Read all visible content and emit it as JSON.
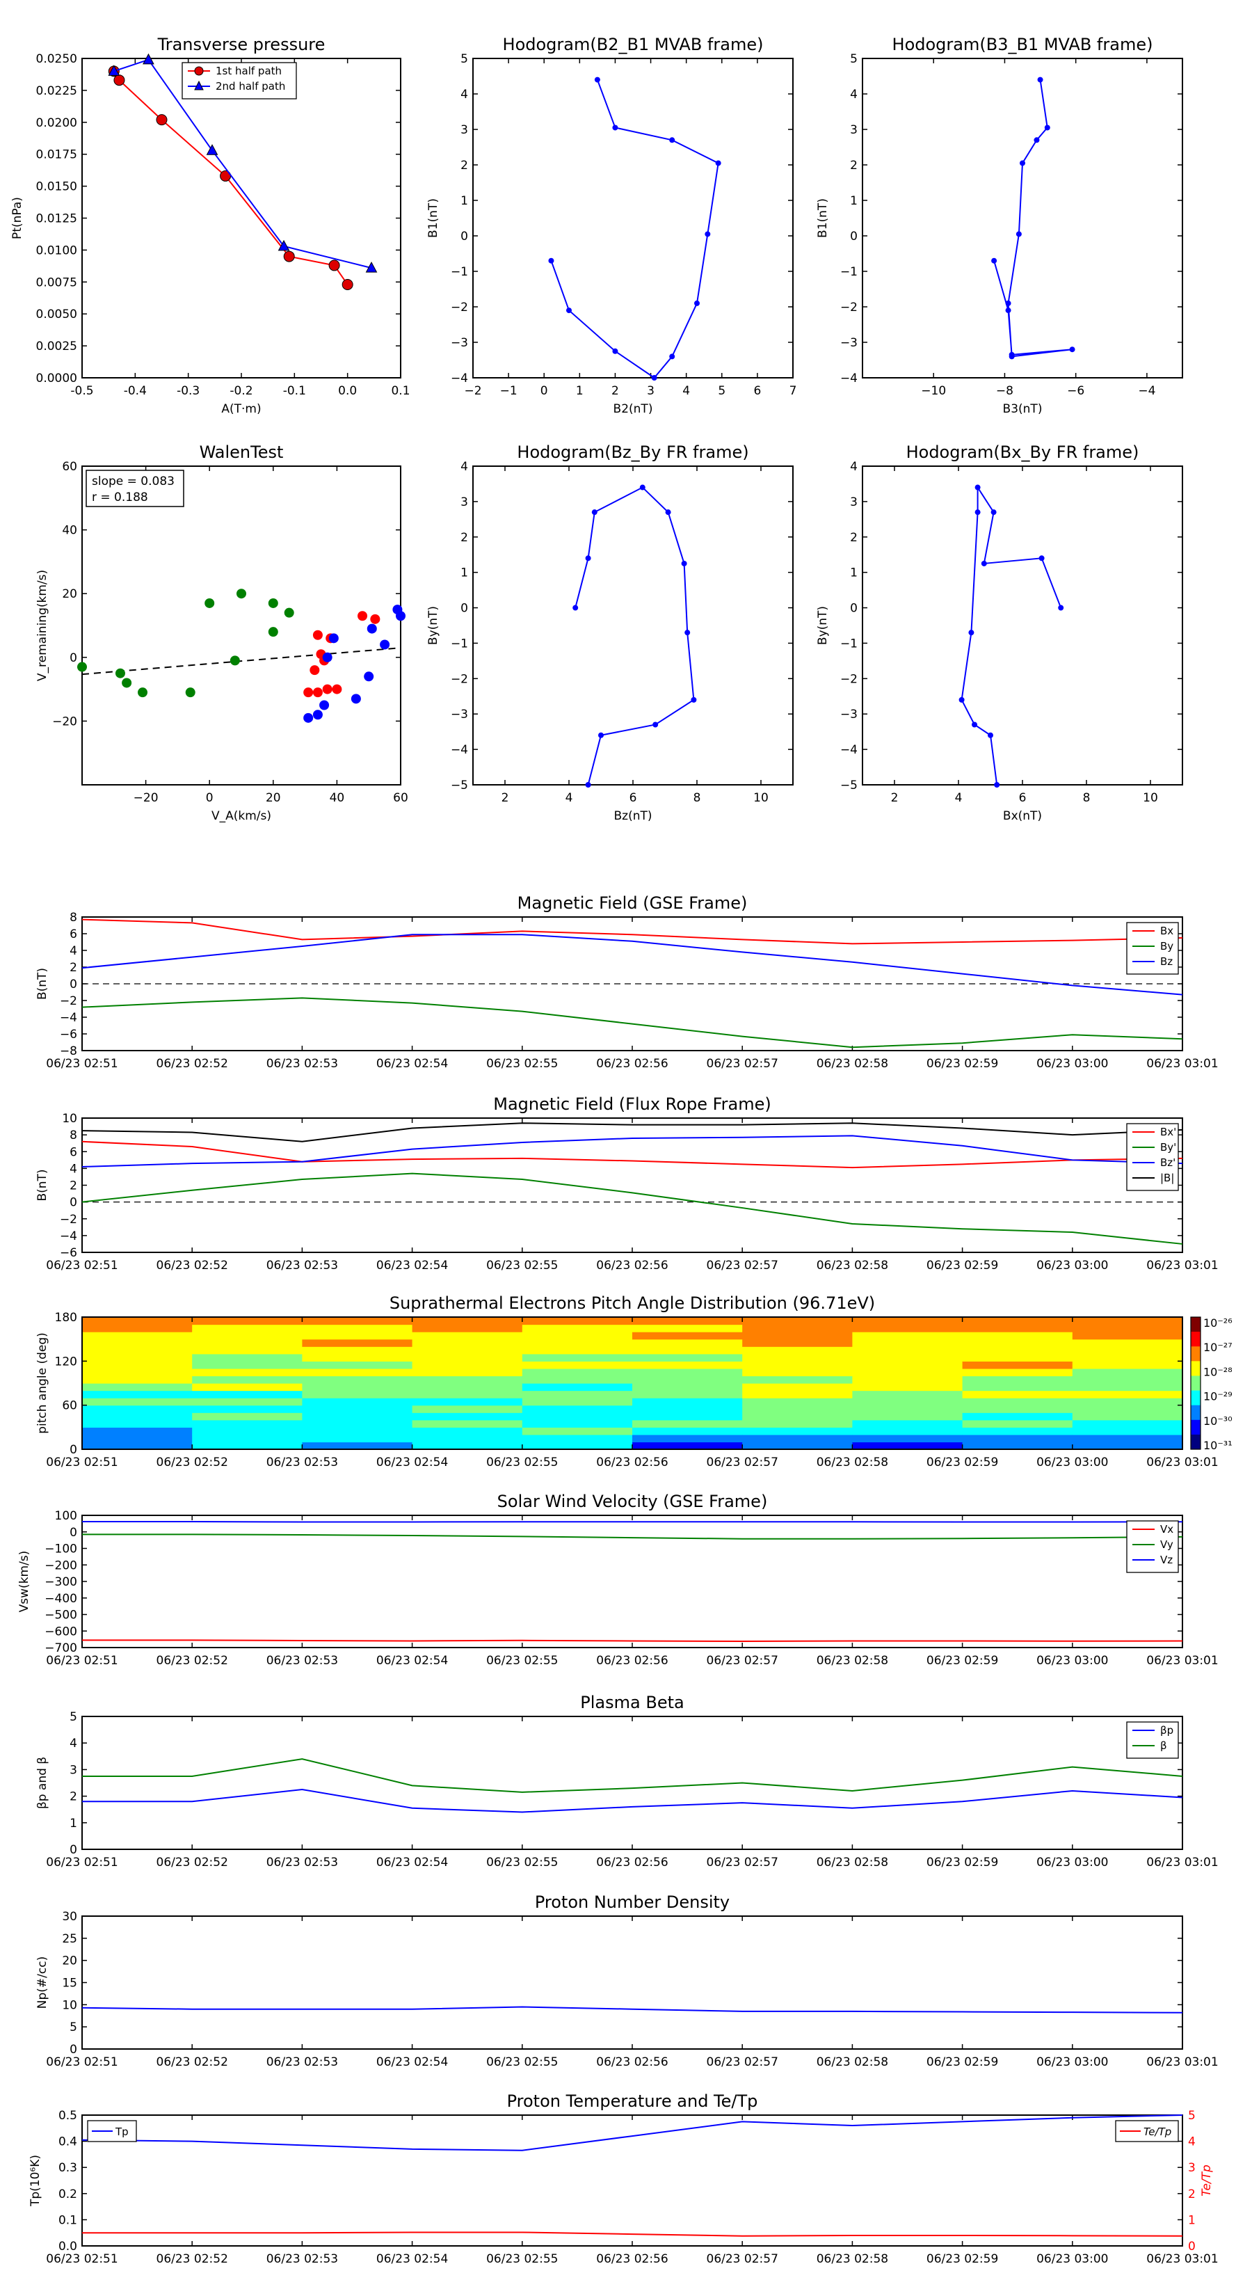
{
  "colors": {
    "red": "#ff0000",
    "green": "#008000",
    "blue": "#0000ff",
    "black": "#000000",
    "marker_red": "#dd0000"
  },
  "time_ticks": [
    "06/23 02:51",
    "06/23 02:52",
    "06/23 02:53",
    "06/23 02:54",
    "06/23 02:55",
    "06/23 02:56",
    "06/23 02:57",
    "06/23 02:58",
    "06/23 02:59",
    "06/23 03:00",
    "06/23 03:01"
  ],
  "chart_data": [
    {
      "id": "transverse",
      "type": "line",
      "title": "Transverse pressure",
      "xlabel": "A(T·m)",
      "ylabel": "Pt(nPa)",
      "xlim": [
        -0.5,
        0.1
      ],
      "ylim": [
        0,
        0.025
      ],
      "xticks": [
        "-0.5",
        "-0.4",
        "-0.3",
        "-0.2",
        "-0.1",
        "0.0",
        "0.1"
      ],
      "yticks": [
        "0.0000",
        "0.0025",
        "0.0050",
        "0.0075",
        "0.0100",
        "0.0125",
        "0.0150",
        "0.0175",
        "0.0200",
        "0.0225",
        "0.0250"
      ],
      "legend": [
        "1st half path",
        "2nd half path"
      ],
      "legend_position": "top-center",
      "series": [
        {
          "name": "1st half path",
          "color": "red",
          "marker": "circle",
          "x": [
            -0.44,
            -0.43,
            -0.35,
            -0.23,
            -0.11,
            -0.025,
            0.0
          ],
          "y": [
            0.024,
            0.0233,
            0.0202,
            0.0158,
            0.0095,
            0.0088,
            0.0073
          ]
        },
        {
          "name": "2nd half path",
          "color": "blue",
          "marker": "triangle",
          "x": [
            -0.44,
            -0.375,
            -0.255,
            -0.12,
            0.045
          ],
          "y": [
            0.024,
            0.0249,
            0.0178,
            0.0103,
            0.0086
          ]
        }
      ]
    },
    {
      "id": "hodo_b2b1",
      "type": "line",
      "title": "Hodogram(B2_B1 MVAB frame)",
      "xlabel": "B2(nT)",
      "ylabel": "B1(nT)",
      "xlim": [
        -2,
        7
      ],
      "ylim": [
        -4,
        5
      ],
      "xticks": [
        "−2",
        "−1",
        "0",
        "1",
        "2",
        "3",
        "4",
        "5",
        "6",
        "7"
      ],
      "yticks": [
        "−4",
        "−3",
        "−2",
        "−1",
        "0",
        "1",
        "2",
        "3",
        "4",
        "5"
      ],
      "series": [
        {
          "name": "B2_B1",
          "color": "blue",
          "marker": "dot",
          "x": [
            1.5,
            2.0,
            3.6,
            4.9,
            4.6,
            4.3,
            3.6,
            3.1,
            2.0,
            0.7,
            0.2
          ],
          "y": [
            4.4,
            3.05,
            2.7,
            2.05,
            0.05,
            -1.9,
            -3.4,
            -4.0,
            -3.25,
            -2.1,
            -0.7
          ]
        }
      ]
    },
    {
      "id": "hodo_b3b1",
      "type": "line",
      "title": "Hodogram(B3_B1 MVAB frame)",
      "xlabel": "B3(nT)",
      "ylabel": "B1(nT)",
      "xlim": [
        -12,
        -3
      ],
      "ylim": [
        -4,
        5
      ],
      "xticks": [
        "−10",
        "−8",
        "−6",
        "−4"
      ],
      "xtick_values": [
        -10,
        -8,
        -6,
        -4
      ],
      "yticks": [
        "−4",
        "−3",
        "−2",
        "−1",
        "0",
        "1",
        "2",
        "3",
        "4",
        "5"
      ],
      "series": [
        {
          "name": "B3_B1",
          "color": "blue",
          "marker": "dot",
          "x": [
            -7.0,
            -6.8,
            -7.1,
            -7.5,
            -7.6,
            -7.9,
            -7.8,
            -6.1,
            -7.8,
            -7.9,
            -8.3
          ],
          "y": [
            4.4,
            3.05,
            2.7,
            2.05,
            0.05,
            -1.9,
            -3.4,
            -3.2,
            -3.35,
            -2.1,
            -0.7
          ]
        }
      ]
    },
    {
      "id": "walen",
      "type": "scatter",
      "title": "WalenTest",
      "xlabel": "V_A(km/s)",
      "ylabel": "V_remaining(km/s)",
      "xlim": [
        -40,
        60
      ],
      "ylim": [
        -40,
        60
      ],
      "xticks": [
        "−20",
        "0",
        "20",
        "40",
        "60"
      ],
      "xtick_values": [
        -20,
        0,
        20,
        40,
        60
      ],
      "yticks": [
        "−20",
        "0",
        "20",
        "40",
        "60"
      ],
      "ytick_values": [
        -20,
        0,
        20,
        40,
        60
      ],
      "annotation": [
        "slope = 0.083",
        "r = 0.188"
      ],
      "fit": {
        "slope": 0.083,
        "intercept": -2.0,
        "color": "black",
        "style": "dashed"
      },
      "series": [
        {
          "name": "green",
          "color": "green",
          "x": [
            -40,
            -28,
            -26,
            -21,
            -6,
            0,
            10,
            8,
            20,
            20,
            25
          ],
          "y": [
            -3,
            -5,
            -8,
            -11,
            -11,
            17,
            20,
            -1,
            17,
            8,
            14
          ]
        },
        {
          "name": "red",
          "color": "red",
          "x": [
            31,
            34,
            33,
            34,
            35,
            36,
            37,
            38,
            40,
            48,
            52
          ],
          "y": [
            -11,
            7,
            -4,
            -11,
            1,
            -1,
            -10,
            6,
            -10,
            13,
            12
          ]
        },
        {
          "name": "blue",
          "color": "blue",
          "x": [
            31,
            34,
            36,
            37,
            39,
            46,
            50,
            51,
            55,
            59,
            60
          ],
          "y": [
            -19,
            -18,
            -15,
            0,
            6,
            -13,
            -6,
            9,
            4,
            15,
            13
          ]
        }
      ]
    },
    {
      "id": "hodo_bzby",
      "type": "line",
      "title": "Hodogram(Bz_By FR frame)",
      "xlabel": "Bz(nT)",
      "ylabel": "By(nT)",
      "xlim": [
        1,
        11
      ],
      "ylim": [
        -5,
        4
      ],
      "xticks": [
        "2",
        "4",
        "6",
        "8",
        "10"
      ],
      "xtick_values": [
        2,
        4,
        6,
        8,
        10
      ],
      "yticks": [
        "−5",
        "−4",
        "−3",
        "−2",
        "−1",
        "0",
        "1",
        "2",
        "3",
        "4"
      ],
      "series": [
        {
          "name": "Bz_By",
          "color": "blue",
          "marker": "dot",
          "x": [
            4.2,
            4.6,
            4.8,
            6.3,
            7.1,
            7.6,
            7.7,
            7.9,
            6.7,
            5.0,
            4.6
          ],
          "y": [
            0.0,
            1.4,
            2.7,
            3.4,
            2.7,
            1.25,
            -0.7,
            -2.6,
            -3.3,
            -3.6,
            -5.0
          ]
        }
      ]
    },
    {
      "id": "hodo_bxby",
      "type": "line",
      "title": "Hodogram(Bx_By FR frame)",
      "xlabel": "Bx(nT)",
      "ylabel": "By(nT)",
      "xlim": [
        1,
        11
      ],
      "ylim": [
        -5,
        4
      ],
      "xticks": [
        "2",
        "4",
        "6",
        "8",
        "10"
      ],
      "xtick_values": [
        2,
        4,
        6,
        8,
        10
      ],
      "yticks": [
        "−5",
        "−4",
        "−3",
        "−2",
        "−1",
        "0",
        "1",
        "2",
        "3",
        "4"
      ],
      "series": [
        {
          "name": "Bx_By",
          "color": "blue",
          "marker": "dot",
          "x": [
            7.2,
            6.6,
            4.8,
            5.1,
            4.6,
            4.6,
            4.4,
            4.1,
            4.5,
            5.0,
            5.2
          ],
          "y": [
            0.0,
            1.4,
            1.25,
            2.7,
            3.4,
            2.7,
            -0.7,
            -2.6,
            -3.3,
            -3.6,
            -5.0
          ]
        }
      ]
    },
    {
      "id": "mag_gse",
      "type": "line",
      "title": "Magnetic Field (GSE Frame)",
      "ylabel": "B(nT)",
      "ylim": [
        -8,
        8
      ],
      "yticks": [
        "−8",
        "−6",
        "−4",
        "−2",
        "0",
        "2",
        "4",
        "6",
        "8"
      ],
      "zero_line": true,
      "legend": [
        "Bx",
        "By",
        "Bz"
      ],
      "legend_position": "right",
      "x": [
        0,
        1,
        2,
        3,
        4,
        5,
        6,
        7,
        8,
        9,
        10
      ],
      "series": [
        {
          "name": "Bx",
          "color": "red",
          "values": [
            7.7,
            7.3,
            5.3,
            5.7,
            6.3,
            5.9,
            5.3,
            4.8,
            5.0,
            5.2,
            5.5
          ]
        },
        {
          "name": "By",
          "color": "green",
          "values": [
            -2.8,
            -2.2,
            -1.7,
            -2.3,
            -3.3,
            -4.8,
            -6.3,
            -7.6,
            -7.1,
            -6.1,
            -6.6
          ]
        },
        {
          "name": "Bz",
          "color": "blue",
          "values": [
            1.9,
            3.2,
            4.5,
            5.9,
            5.9,
            5.1,
            3.8,
            2.6,
            1.2,
            -0.2,
            -1.3
          ]
        }
      ]
    },
    {
      "id": "mag_fr",
      "type": "line",
      "title": "Magnetic Field (Flux Rope Frame)",
      "ylabel": "B(nT)",
      "ylim": [
        -6,
        10
      ],
      "yticks": [
        "−6",
        "−4",
        "−2",
        "0",
        "2",
        "4",
        "6",
        "8",
        "10"
      ],
      "zero_line": true,
      "legend": [
        "Bx'",
        "By'",
        "Bz'",
        "|B|"
      ],
      "legend_position": "right",
      "x": [
        0,
        1,
        2,
        3,
        4,
        5,
        6,
        7,
        8,
        9,
        10
      ],
      "series": [
        {
          "name": "Bx'",
          "color": "red",
          "values": [
            7.2,
            6.6,
            4.8,
            5.1,
            5.2,
            4.9,
            4.5,
            4.1,
            4.5,
            5.0,
            5.2
          ]
        },
        {
          "name": "By'",
          "color": "green",
          "values": [
            0.0,
            1.4,
            2.7,
            3.4,
            2.7,
            1.1,
            -0.7,
            -2.6,
            -3.2,
            -3.6,
            -5.0
          ]
        },
        {
          "name": "Bz'",
          "color": "blue",
          "values": [
            4.2,
            4.6,
            4.8,
            6.3,
            7.1,
            7.6,
            7.7,
            7.9,
            6.7,
            5.0,
            4.6
          ]
        },
        {
          "name": "|B|",
          "color": "black",
          "values": [
            8.5,
            8.3,
            7.2,
            8.8,
            9.4,
            9.2,
            9.2,
            9.4,
            8.8,
            8.0,
            8.6
          ]
        }
      ]
    },
    {
      "id": "pad",
      "type": "heatmap",
      "title": "Suprathermal Electrons Pitch Angle Distribution (96.71eV)",
      "ylabel": "pitch angle (deg)",
      "ylim": [
        0,
        180
      ],
      "yticks": [
        "0",
        "60",
        "120",
        "180"
      ],
      "ytick_values": [
        0,
        60,
        120,
        180
      ],
      "colorbar_ticks": [
        "10⁻²⁶",
        "10⁻²⁷",
        "10⁻²⁸",
        "10⁻²⁹",
        "10⁻³⁰",
        "10⁻³¹"
      ]
    },
    {
      "id": "vsw",
      "type": "line",
      "title": "Solar Wind Velocity (GSE Frame)",
      "ylabel": "Vsw(km/s)",
      "ylim": [
        -700,
        100
      ],
      "yticks": [
        "−700",
        "−600",
        "−500",
        "−400",
        "−300",
        "−200",
        "−100",
        "0",
        "100"
      ],
      "legend": [
        "Vx",
        "Vy",
        "Vz"
      ],
      "legend_position": "right",
      "x": [
        0,
        1,
        2,
        3,
        4,
        5,
        6,
        7,
        8,
        9,
        10
      ],
      "series": [
        {
          "name": "Vx",
          "color": "red",
          "values": [
            -655,
            -655,
            -658,
            -660,
            -657,
            -660,
            -662,
            -660,
            -660,
            -661,
            -660
          ]
        },
        {
          "name": "Vy",
          "color": "green",
          "values": [
            -15,
            -15,
            -18,
            -22,
            -28,
            -35,
            -42,
            -42,
            -40,
            -36,
            -30
          ]
        },
        {
          "name": "Vz",
          "color": "blue",
          "values": [
            62,
            62,
            60,
            60,
            61,
            61,
            61,
            61,
            60,
            60,
            61
          ]
        }
      ]
    },
    {
      "id": "beta",
      "type": "line",
      "title": "Plasma Beta",
      "ylabel": "βp and β",
      "ylim": [
        0,
        5
      ],
      "yticks": [
        "0",
        "1",
        "2",
        "3",
        "4",
        "5"
      ],
      "legend": [
        "βp",
        "β"
      ],
      "legend_position": "right",
      "x": [
        0,
        1,
        2,
        3,
        4,
        5,
        6,
        7,
        8,
        9,
        10
      ],
      "series": [
        {
          "name": "βp",
          "color": "blue",
          "values": [
            1.8,
            1.8,
            2.25,
            1.55,
            1.4,
            1.6,
            1.75,
            1.55,
            1.8,
            2.2,
            1.95
          ]
        },
        {
          "name": "β",
          "color": "green",
          "values": [
            2.75,
            2.75,
            3.4,
            2.4,
            2.15,
            2.3,
            2.5,
            2.2,
            2.6,
            3.1,
            2.75
          ]
        }
      ]
    },
    {
      "id": "density",
      "type": "line",
      "title": "Proton Number Density",
      "ylabel": "Np(#/cc)",
      "ylim": [
        0,
        30
      ],
      "yticks": [
        "0",
        "5",
        "10",
        "15",
        "20",
        "25",
        "30"
      ],
      "x": [
        0,
        1,
        2,
        3,
        4,
        5,
        6,
        7,
        8,
        9,
        10
      ],
      "series": [
        {
          "name": "Np",
          "color": "blue",
          "values": [
            9.3,
            9.0,
            9.0,
            9.0,
            9.5,
            9.0,
            8.5,
            8.5,
            8.4,
            8.3,
            8.2
          ]
        }
      ]
    },
    {
      "id": "temp",
      "type": "line",
      "title": "Proton Temperature and Te/Tp",
      "ylabel": "Tp(10⁶K)",
      "ylabel_right": "Te/Tp",
      "ylim": [
        0,
        0.5
      ],
      "ylim_right": [
        0,
        5
      ],
      "yticks": [
        "0.0",
        "0.1",
        "0.2",
        "0.3",
        "0.4",
        "0.5"
      ],
      "yticks_right": [
        "0",
        "1",
        "2",
        "3",
        "4",
        "5"
      ],
      "legend": [
        "Tp",
        "Te/Tp"
      ],
      "x": [
        0,
        1,
        2,
        3,
        4,
        5,
        6,
        7,
        8,
        9,
        10
      ],
      "series": [
        {
          "name": "Tp",
          "color": "blue",
          "axis": "left",
          "values": [
            0.405,
            0.4,
            0.385,
            0.37,
            0.365,
            0.42,
            0.475,
            0.46,
            0.475,
            0.49,
            0.5
          ]
        },
        {
          "name": "Te/Tp",
          "color": "red",
          "axis": "right",
          "values": [
            0.5,
            0.5,
            0.5,
            0.52,
            0.52,
            0.45,
            0.38,
            0.4,
            0.4,
            0.39,
            0.38
          ]
        }
      ]
    }
  ]
}
